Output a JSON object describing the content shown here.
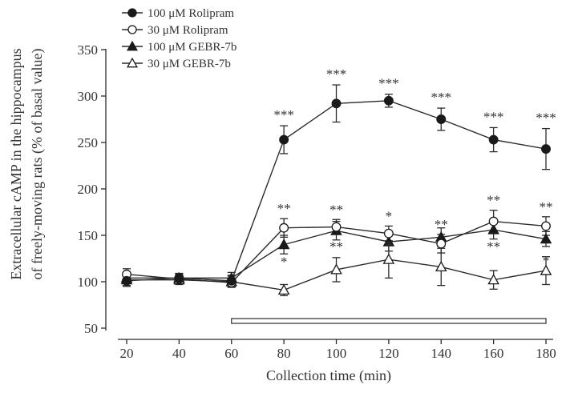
{
  "chart_data": {
    "type": "line",
    "xlabel": "Collection time (min)",
    "ylabel_lines": [
      "Extracellular cAMP in the hippocampus",
      "of freely-moving rats (% of basal value)"
    ],
    "x": [
      20,
      40,
      60,
      80,
      100,
      120,
      140,
      160,
      180
    ],
    "x_ticks": [
      "20",
      "40",
      "60",
      "80",
      "100",
      "120",
      "140",
      "160",
      "180"
    ],
    "y_ticks": [
      "50",
      "100",
      "150",
      "200",
      "250",
      "300",
      "350"
    ],
    "xlim": [
      15,
      185
    ],
    "ylim": [
      50,
      350
    ],
    "grid": false,
    "legend_position": "top-left",
    "treatment_bar": {
      "from": 60,
      "to": 180
    },
    "series": [
      {
        "name": "100 μM Rolipram",
        "marker": "filled-circle",
        "values": [
          101,
          104,
          101,
          253,
          292,
          295,
          275,
          253,
          243
        ],
        "errors": [
          6,
          5,
          6,
          15,
          20,
          7,
          12,
          13,
          22
        ],
        "sig": [
          "",
          "",
          "",
          "***",
          "***",
          "***",
          "***",
          "***",
          "***"
        ]
      },
      {
        "name": "30 μM Rolipram",
        "marker": "open-circle",
        "values": [
          108,
          103,
          99,
          158,
          159,
          152,
          141,
          165,
          160
        ],
        "errors": [
          6,
          5,
          5,
          10,
          8,
          8,
          10,
          12,
          10
        ],
        "sig": [
          "",
          "",
          "",
          "**",
          "**",
          "*",
          "**",
          "**",
          "**"
        ]
      },
      {
        "name": "100 μM GEBR-7b",
        "marker": "filled-triangle",
        "values": [
          104,
          104,
          104,
          140,
          155,
          143,
          148,
          156,
          146
        ],
        "errors": [
          6,
          5,
          6,
          10,
          10,
          10,
          10,
          10,
          8
        ],
        "sig": [
          "",
          "",
          "",
          "*",
          "",
          "",
          "",
          "",
          ""
        ]
      },
      {
        "name": "30 μM GEBR-7b",
        "marker": "open-triangle",
        "values": [
          102,
          102,
          100,
          91,
          113,
          124,
          116,
          102,
          112
        ],
        "errors": [
          6,
          5,
          6,
          6,
          13,
          20,
          20,
          10,
          15
        ],
        "sig": [
          "",
          "",
          "",
          "",
          "**",
          "*",
          "",
          "**",
          "*"
        ]
      }
    ]
  }
}
